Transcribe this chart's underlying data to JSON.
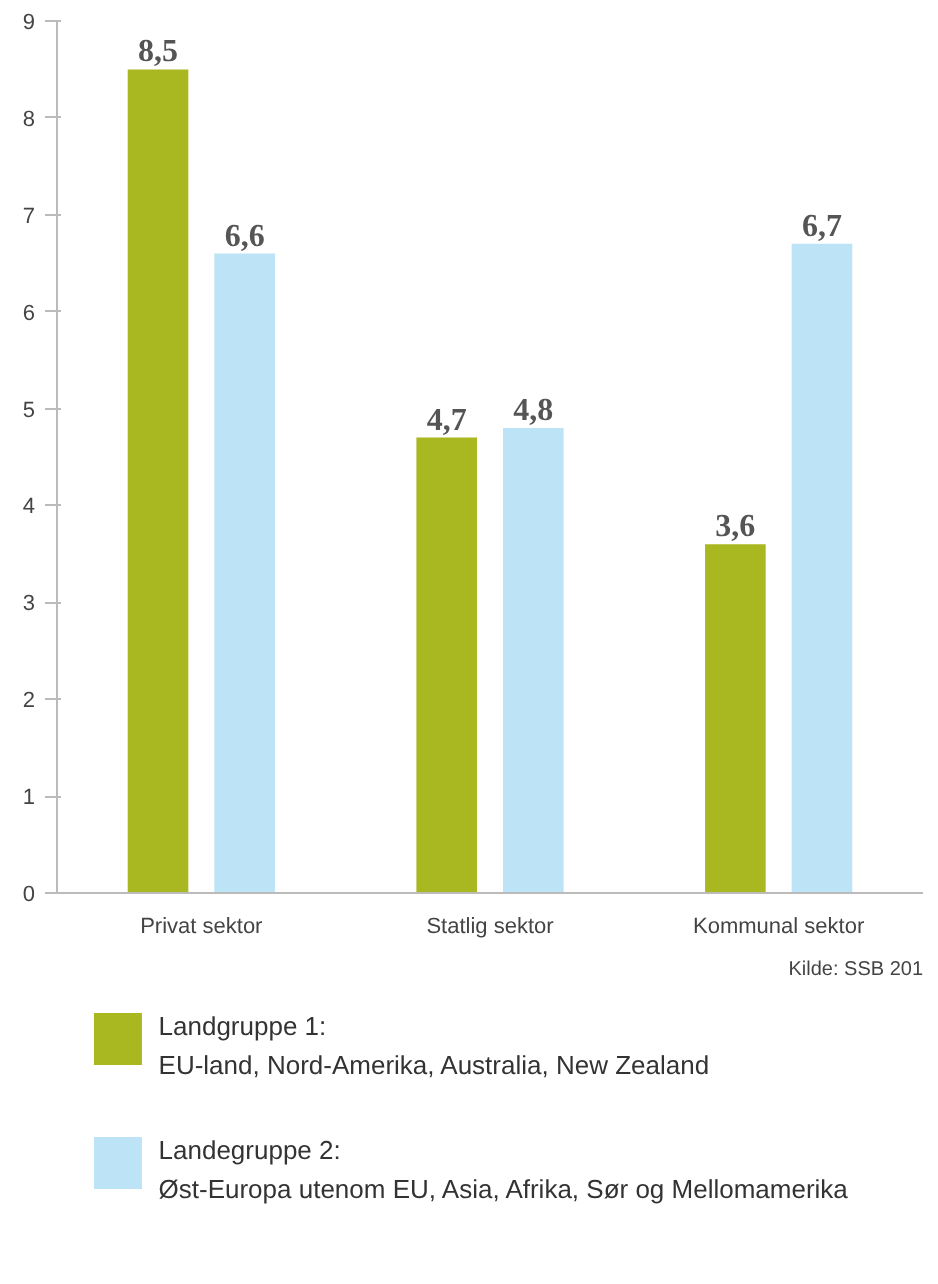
{
  "chart_data": {
    "type": "bar",
    "categories": [
      "Privat sektor",
      "Statlig sektor",
      "Kommunal sektor"
    ],
    "series": [
      {
        "name": "Landgruppe 1:\nEU-land, Nord-Amerika, Australia, New Zealand",
        "color": "#a9b820",
        "values": [
          8.5,
          4.7,
          3.6
        ]
      },
      {
        "name": "Landegruppe 2:\nØst-Europa utenom EU, Asia, Afrika, Sør og Mellomamerika",
        "color": "#bde3f7",
        "values": [
          6.6,
          4.8,
          6.7
        ]
      }
    ],
    "value_labels": [
      [
        "8,5",
        "4,7",
        "3,6"
      ],
      [
        "6,6",
        "4,8",
        "6,7"
      ]
    ],
    "ylim": [
      0,
      9
    ],
    "yticks": [
      0,
      1,
      2,
      3,
      4,
      5,
      6,
      7,
      8,
      9
    ],
    "grid": false,
    "legend": "bottom",
    "annotations": [
      "Kilde: SSB 201"
    ]
  }
}
